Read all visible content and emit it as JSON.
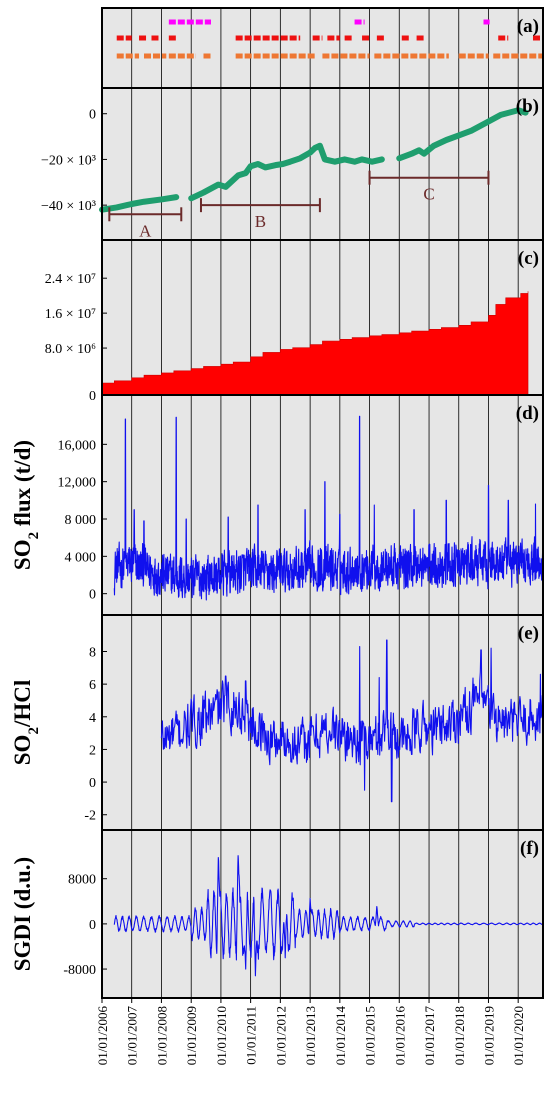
{
  "x_axis": {
    "start": "2006-01-01",
    "end": "2020-11-01",
    "tick_labels": [
      "01/01/2006",
      "01/01/2007",
      "01/01/2008",
      "01/01/2009",
      "01/01/2010",
      "01/01/2011",
      "01/01/2012",
      "01/01/2013",
      "01/01/2014",
      "01/01/2015",
      "01/01/2016",
      "01/01/2017",
      "01/01/2018",
      "01/01/2019",
      "01/01/2020"
    ]
  },
  "colors": {
    "panel_bg": "#e6e6e6",
    "magenta": "#ff00ff",
    "red": "#ee1111",
    "orange": "#ee7733",
    "green": "#1f9e6e",
    "bar_red": "#ff0000",
    "blue": "#1010ee",
    "bracket": "#6b2a2a"
  },
  "chart_data": [
    {
      "panel": "(a)",
      "type": "timeline",
      "rows": [
        {
          "color": "magenta",
          "intervals": [
            [
              "2008-04-01",
              "2009-09-01"
            ],
            [
              "2014-07-01",
              "2014-11-01"
            ],
            [
              "2018-11-01",
              "2019-01-15"
            ]
          ]
        },
        {
          "color": "red",
          "intervals": [
            [
              "2006-07-01",
              "2007-01-01"
            ],
            [
              "2007-04-01",
              "2007-07-01"
            ],
            [
              "2007-09-01",
              "2007-12-01"
            ],
            [
              "2008-04-01",
              "2008-07-01"
            ],
            [
              "2010-07-01",
              "2012-09-01"
            ],
            [
              "2013-02-01",
              "2013-06-01"
            ],
            [
              "2013-08-01",
              "2014-01-01"
            ],
            [
              "2014-03-01",
              "2014-06-01"
            ],
            [
              "2014-10-01",
              "2015-01-15"
            ],
            [
              "2015-04-01",
              "2015-07-01"
            ],
            [
              "2016-02-01",
              "2016-05-01"
            ],
            [
              "2016-08-01",
              "2016-11-01"
            ],
            [
              "2019-05-01",
              "2019-09-01"
            ],
            [
              "2020-07-01",
              "2020-11-01"
            ]
          ]
        },
        {
          "color": "orange",
          "intervals": [
            [
              "2006-07-01",
              "2007-04-01"
            ],
            [
              "2007-06-01",
              "2008-03-01"
            ],
            [
              "2008-04-01",
              "2009-03-01"
            ],
            [
              "2009-06-01",
              "2009-09-01"
            ],
            [
              "2010-07-01",
              "2013-03-01"
            ],
            [
              "2013-06-01",
              "2015-01-01"
            ],
            [
              "2015-03-01",
              "2017-09-01"
            ],
            [
              "2018-01-01",
              "2019-01-01"
            ],
            [
              "2019-03-01",
              "2020-11-01"
            ]
          ]
        }
      ],
      "label": "(a)"
    },
    {
      "panel": "(b)",
      "type": "line",
      "yticks": [
        0,
        -20000,
        -40000
      ],
      "ytick_labels": [
        "0",
        "−20 × 10³",
        "−40 × 10³"
      ],
      "ylim": [
        -50000,
        6000
      ],
      "series": [
        {
          "color": "green",
          "points": [
            [
              "2006-01-01",
              -42000
            ],
            [
              "2006-07-01",
              -41000
            ],
            [
              "2007-01-01",
              -39500
            ],
            [
              "2007-06-01",
              -38500
            ],
            [
              "2008-01-01",
              -37500
            ],
            [
              "2008-07-01",
              -36500
            ]
          ]
        },
        {
          "color": "green",
          "points": [
            [
              "2009-01-01",
              -37000
            ],
            [
              "2009-06-01",
              -34500
            ],
            [
              "2009-12-01",
              -31000
            ],
            [
              "2010-03-01",
              -32000
            ],
            [
              "2010-08-01",
              -27000
            ],
            [
              "2010-11-01",
              -26000
            ],
            [
              "2011-01-01",
              -23000
            ],
            [
              "2011-04-01",
              -22000
            ],
            [
              "2011-07-01",
              -23500
            ],
            [
              "2011-11-01",
              -22500
            ],
            [
              "2012-02-01",
              -22000
            ],
            [
              "2012-05-01",
              -21000
            ],
            [
              "2012-09-01",
              -19500
            ],
            [
              "2013-01-01",
              -17000
            ],
            [
              "2013-03-01",
              -15000
            ],
            [
              "2013-05-01",
              -14000
            ],
            [
              "2013-07-01",
              -20000
            ],
            [
              "2013-11-01",
              -21000
            ],
            [
              "2014-03-01",
              -20000
            ],
            [
              "2014-07-01",
              -21000
            ],
            [
              "2014-10-01",
              -20000
            ],
            [
              "2015-02-01",
              -21000
            ],
            [
              "2015-06-01",
              -20000
            ]
          ]
        },
        {
          "color": "green",
          "points": [
            [
              "2016-01-01",
              -19500
            ],
            [
              "2016-06-01",
              -17500
            ],
            [
              "2016-09-01",
              -16000
            ],
            [
              "2016-11-01",
              -17500
            ],
            [
              "2017-03-01",
              -14000
            ],
            [
              "2017-08-01",
              -11500
            ],
            [
              "2018-01-01",
              -9500
            ],
            [
              "2018-06-01",
              -7500
            ],
            [
              "2018-12-01",
              -4000
            ],
            [
              "2019-06-01",
              -500
            ],
            [
              "2020-01-01",
              1500
            ],
            [
              "2020-04-01",
              500
            ]
          ]
        }
      ],
      "segments": [
        {
          "label": "A",
          "start": "2006-04-01",
          "end": "2008-09-01",
          "y": -44000
        },
        {
          "label": "B",
          "start": "2009-05-01",
          "end": "2013-05-01",
          "y": -40000
        },
        {
          "label": "C",
          "start": "2015-01-01",
          "end": "2019-01-01",
          "y": -28000
        }
      ],
      "label": "(b)"
    },
    {
      "panel": "(c)",
      "type": "area",
      "yticks": [
        0,
        8000000,
        16000000,
        24000000
      ],
      "ytick_labels": [
        "0",
        "8.0 × 10⁶",
        "1.6 × 10⁷",
        "2.4 × 10⁷"
      ],
      "ylim": [
        0,
        30000000
      ],
      "points": [
        [
          "2006-01-01",
          0
        ],
        [
          "2006-06-01",
          500000
        ],
        [
          "2007-01-01",
          1200000
        ],
        [
          "2007-06-01",
          1800000
        ],
        [
          "2008-01-01",
          2300000
        ],
        [
          "2008-06-01",
          2800000
        ],
        [
          "2009-01-01",
          3300000
        ],
        [
          "2009-06-01",
          3800000
        ],
        [
          "2010-01-01",
          4300000
        ],
        [
          "2010-06-01",
          4800000
        ],
        [
          "2011-01-01",
          6000000
        ],
        [
          "2011-06-01",
          7000000
        ],
        [
          "2012-01-01",
          7700000
        ],
        [
          "2012-06-01",
          8100000
        ],
        [
          "2013-01-01",
          8800000
        ],
        [
          "2013-06-01",
          9600000
        ],
        [
          "2014-01-01",
          10000000
        ],
        [
          "2014-06-01",
          10400000
        ],
        [
          "2015-01-01",
          10800000
        ],
        [
          "2015-06-01",
          11100000
        ],
        [
          "2016-01-01",
          11500000
        ],
        [
          "2016-06-01",
          11900000
        ],
        [
          "2017-01-01",
          12300000
        ],
        [
          "2017-06-01",
          12700000
        ],
        [
          "2018-01-01",
          13200000
        ],
        [
          "2018-06-01",
          14000000
        ],
        [
          "2019-01-01",
          15500000
        ],
        [
          "2019-04-01",
          18000000
        ],
        [
          "2019-08-01",
          19500000
        ],
        [
          "2020-02-01",
          20500000
        ],
        [
          "2020-05-01",
          21000000
        ]
      ],
      "label": "(c)"
    },
    {
      "panel": "(d)",
      "type": "line",
      "ylabel": "SO2 flux (t/d)",
      "yticks": [
        0,
        4000,
        8000,
        12000,
        16000
      ],
      "ytick_labels": [
        "0",
        "4 000",
        "8 000",
        "12,000",
        "16,000"
      ],
      "ylim": [
        -1000,
        20000
      ],
      "x_range": [
        "2006-06-01",
        "2020-11-01"
      ],
      "baseline": [
        [
          "2006-06-01",
          2600
        ],
        [
          "2007-01-01",
          3200
        ],
        [
          "2008-01-01",
          2000
        ],
        [
          "2009-01-01",
          1600
        ],
        [
          "2010-01-01",
          2000
        ],
        [
          "2011-01-01",
          2500
        ],
        [
          "2012-01-01",
          2400
        ],
        [
          "2013-01-01",
          2700
        ],
        [
          "2014-01-01",
          2600
        ],
        [
          "2015-01-01",
          2800
        ],
        [
          "2016-01-01",
          2900
        ],
        [
          "2017-01-01",
          3000
        ],
        [
          "2018-01-01",
          3100
        ],
        [
          "2019-01-01",
          3300
        ],
        [
          "2020-01-01",
          3500
        ],
        [
          "2020-11-01",
          3500
        ]
      ],
      "spikes": [
        [
          "2006-10-15",
          18700
        ],
        [
          "2007-02-01",
          9000
        ],
        [
          "2007-06-01",
          7800
        ],
        [
          "2008-07-01",
          18900
        ],
        [
          "2008-11-01",
          8000
        ],
        [
          "2010-04-01",
          8200
        ],
        [
          "2011-04-01",
          9500
        ],
        [
          "2012-11-01",
          9000
        ],
        [
          "2013-07-01",
          12000
        ],
        [
          "2014-01-01",
          8500
        ],
        [
          "2014-09-01",
          19000
        ],
        [
          "2015-03-01",
          9500
        ],
        [
          "2016-07-01",
          9000
        ],
        [
          "2017-08-01",
          10000
        ],
        [
          "2019-01-01",
          11600
        ],
        [
          "2019-09-01",
          10000
        ],
        [
          "2020-08-01",
          9600
        ]
      ],
      "label": "(d)"
    },
    {
      "panel": "(e)",
      "type": "line",
      "ylabel": "SO2/HCl",
      "yticks": [
        -2,
        0,
        2,
        4,
        6,
        8
      ],
      "ytick_labels": [
        "-2",
        "0",
        "2",
        "4",
        "6",
        "8"
      ],
      "ylim": [
        -2.2,
        9.5
      ],
      "x_range": [
        "2008-01-01",
        "2020-11-01"
      ],
      "baseline": [
        [
          "2008-01-01",
          2.6
        ],
        [
          "2008-08-01",
          3.0
        ],
        [
          "2009-01-01",
          3.5
        ],
        [
          "2009-09-01",
          4.2
        ],
        [
          "2010-03-01",
          4.8
        ],
        [
          "2010-09-01",
          4.4
        ],
        [
          "2011-03-01",
          3.4
        ],
        [
          "2011-09-01",
          2.5
        ],
        [
          "2012-03-01",
          2.7
        ],
        [
          "2012-09-01",
          2.2
        ],
        [
          "2013-03-01",
          2.9
        ],
        [
          "2013-09-01",
          3.2
        ],
        [
          "2014-03-01",
          2.8
        ],
        [
          "2014-09-01",
          2.5
        ],
        [
          "2015-03-01",
          2.6
        ],
        [
          "2015-09-01",
          3.5
        ],
        [
          "2016-03-01",
          2.4
        ],
        [
          "2016-09-01",
          3.4
        ],
        [
          "2017-03-01",
          3.2
        ],
        [
          "2017-09-01",
          3.6
        ],
        [
          "2018-03-01",
          4.2
        ],
        [
          "2018-09-01",
          5.2
        ],
        [
          "2019-03-01",
          4.0
        ],
        [
          "2019-09-01",
          3.5
        ],
        [
          "2020-03-01",
          3.8
        ],
        [
          "2020-11-01",
          4.0
        ]
      ],
      "extremes": [
        [
          "2010-03-01",
          6.5
        ],
        [
          "2010-11-01",
          6.2
        ],
        [
          "2014-09-01",
          8.3
        ],
        [
          "2015-05-01",
          6.4
        ],
        [
          "2015-08-01",
          8.7
        ],
        [
          "2015-10-01",
          -1.2
        ],
        [
          "2018-10-01",
          8.1
        ],
        [
          "2019-02-01",
          8.2
        ],
        [
          "2020-10-01",
          6.6
        ],
        [
          "2014-11-01",
          -0.5
        ]
      ],
      "label": "(e)"
    },
    {
      "panel": "(f)",
      "type": "line",
      "ylabel": "SGDI (d.u.)",
      "yticks": [
        -8000,
        0,
        8000
      ],
      "ytick_labels": [
        "-8000",
        "0",
        "8000"
      ],
      "ylim": [
        -11000,
        14500
      ],
      "x_range": [
        "2006-06-01",
        "2020-11-01"
      ],
      "peaks": [
        [
          "2009-12-01",
          12500
        ],
        [
          "2010-08-01",
          12700
        ],
        [
          "2010-11-01",
          -8000
        ],
        [
          "2011-03-01",
          -9200
        ],
        [
          "2011-09-01",
          6000
        ],
        [
          "2012-03-01",
          -6000
        ],
        [
          "2013-01-01",
          4500
        ],
        [
          "2015-04-01",
          3300
        ]
      ],
      "label": "(f)"
    }
  ]
}
